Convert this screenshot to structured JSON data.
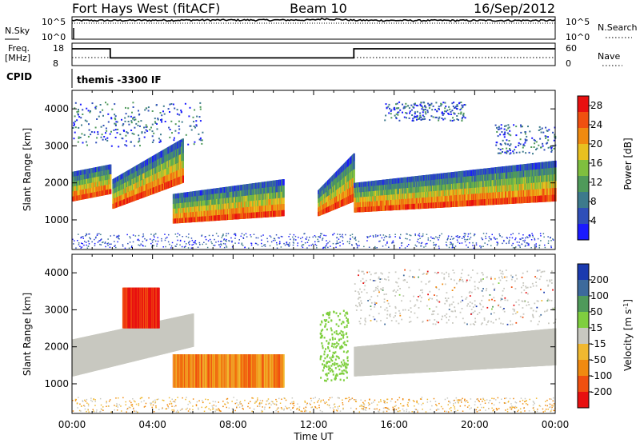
{
  "header": {
    "station": "Fort Hays West (fitACF)",
    "beam": "Beam 10",
    "date": "16/Sep/2012"
  },
  "noise_panel": {
    "left_label": "N.Sky",
    "right_label": "N.Search",
    "left_ticks": [
      "10^5",
      "10^0"
    ],
    "right_ticks": [
      "10^5",
      "10^0"
    ]
  },
  "freq_panel": {
    "left_label_1": "Freq.",
    "left_label_2": "[MHz]",
    "right_label": "Nave",
    "left_ticks": [
      "18",
      "8"
    ],
    "right_ticks": [
      "60",
      "0"
    ]
  },
  "cpid": {
    "label": "CPID",
    "value": "themis -3300 IF"
  },
  "colors": {
    "power_scale": [
      "#1a1aff",
      "#2f4fb8",
      "#3d7a8c",
      "#4f9a5a",
      "#7fbf3f",
      "#e8c020",
      "#f08a10",
      "#f05010",
      "#e81010"
    ],
    "velocity_scale": [
      "#e81010",
      "#f05010",
      "#f08a10",
      "#f0b830",
      "#c8c8c0",
      "#7fcf3f",
      "#4f9a5a",
      "#3d6a9c",
      "#1a3aaf"
    ],
    "ground_scatter": "#c8c8c0"
  },
  "chart_data": [
    {
      "type": "line",
      "title": "Fort Hays West (fitACF)",
      "x_range_hours": [
        0,
        24
      ],
      "y_scale": "log",
      "y_range": [
        1,
        100000
      ],
      "series": [
        {
          "name": "N.Sky",
          "x": [
            0,
            2,
            4,
            6,
            8,
            10,
            12,
            12.5,
            13,
            14,
            16,
            18,
            20,
            22,
            24
          ],
          "y": [
            20000,
            20000,
            22000,
            24000,
            25000,
            25000,
            26000,
            50000,
            40000,
            22000,
            20000,
            20000,
            20000,
            20000,
            20000
          ]
        }
      ]
    },
    {
      "type": "line",
      "x_range_hours": [
        0,
        24
      ],
      "y_range": [
        8,
        18
      ],
      "ylabel": "Freq. [MHz]",
      "series": [
        {
          "name": "Freq.",
          "x": [
            0,
            1.9,
            1.9,
            14,
            14,
            24
          ],
          "y": [
            15.7,
            15.7,
            11.3,
            11.3,
            15.7,
            15.7
          ]
        }
      ]
    },
    {
      "type": "heatmap",
      "xlabel": "Time UT",
      "ylabel": "Slant Range [km]",
      "colorbar_label": "Power [dB]",
      "colorbar_ticks": [
        4,
        8,
        12,
        16,
        20,
        24,
        28
      ],
      "colorbar_range": [
        0,
        30
      ],
      "x_range_hours": [
        0,
        24
      ],
      "y_range": [
        200,
        4500
      ],
      "y_ticks": [
        1000,
        2000,
        3000,
        4000
      ],
      "x_ticks": [
        "00:00",
        "04:00",
        "08:00",
        "12:00",
        "16:00",
        "20:00",
        "00:00"
      ],
      "features": [
        {
          "feature": "band",
          "t": [
            0.0,
            1.9
          ],
          "range_low": [
            1500,
            1700
          ],
          "range_high": [
            2300,
            2500
          ],
          "peak_dB": 28
        },
        {
          "feature": "band",
          "t": [
            2.0,
            5.5
          ],
          "range_low": [
            1300,
            2000
          ],
          "range_high": [
            2100,
            3200
          ],
          "peak_dB": 26
        },
        {
          "feature": "band",
          "t": [
            5.0,
            10.5
          ],
          "range_low": [
            900,
            1100
          ],
          "range_high": [
            1700,
            2100
          ],
          "peak_dB": 28
        },
        {
          "feature": "band",
          "t": [
            12.2,
            14.0
          ],
          "range_low": [
            1100,
            1500
          ],
          "range_high": [
            1800,
            2800
          ],
          "peak_dB": 27
        },
        {
          "feature": "band",
          "t": [
            14.0,
            24.0
          ],
          "range_low": [
            1200,
            1500
          ],
          "range_high": [
            2000,
            2600
          ],
          "peak_dB": 28
        }
      ]
    },
    {
      "type": "heatmap",
      "xlabel": "Time UT",
      "ylabel": "Slant Range [km]",
      "colorbar_label": "Velocity [m s^-1]",
      "colorbar_ticks": [
        200,
        100,
        50,
        15,
        -15,
        -50,
        -100,
        -200
      ],
      "x_range_hours": [
        0,
        24
      ],
      "y_range": [
        200,
        4500
      ],
      "y_ticks": [
        1000,
        2000,
        3000,
        4000
      ],
      "x_ticks": [
        "00:00",
        "04:00",
        "08:00",
        "12:00",
        "16:00",
        "20:00",
        "00:00"
      ],
      "features": [
        {
          "feature": "ground scatter",
          "t": [
            0.0,
            6.0
          ],
          "range_low": [
            1200,
            2000
          ],
          "range_high": [
            2200,
            2900
          ]
        },
        {
          "feature": "velocity patch",
          "t": [
            2.5,
            4.3
          ],
          "range": [
            2500,
            3600
          ],
          "velocity": -200
        },
        {
          "feature": "velocity patch",
          "t": [
            5.0,
            10.5
          ],
          "range": [
            900,
            1800
          ],
          "velocity": -80
        },
        {
          "feature": "ground scatter",
          "t": [
            14.0,
            24.0
          ],
          "range_low": [
            1200,
            1500
          ],
          "range_high": [
            2000,
            2500
          ]
        }
      ]
    }
  ]
}
